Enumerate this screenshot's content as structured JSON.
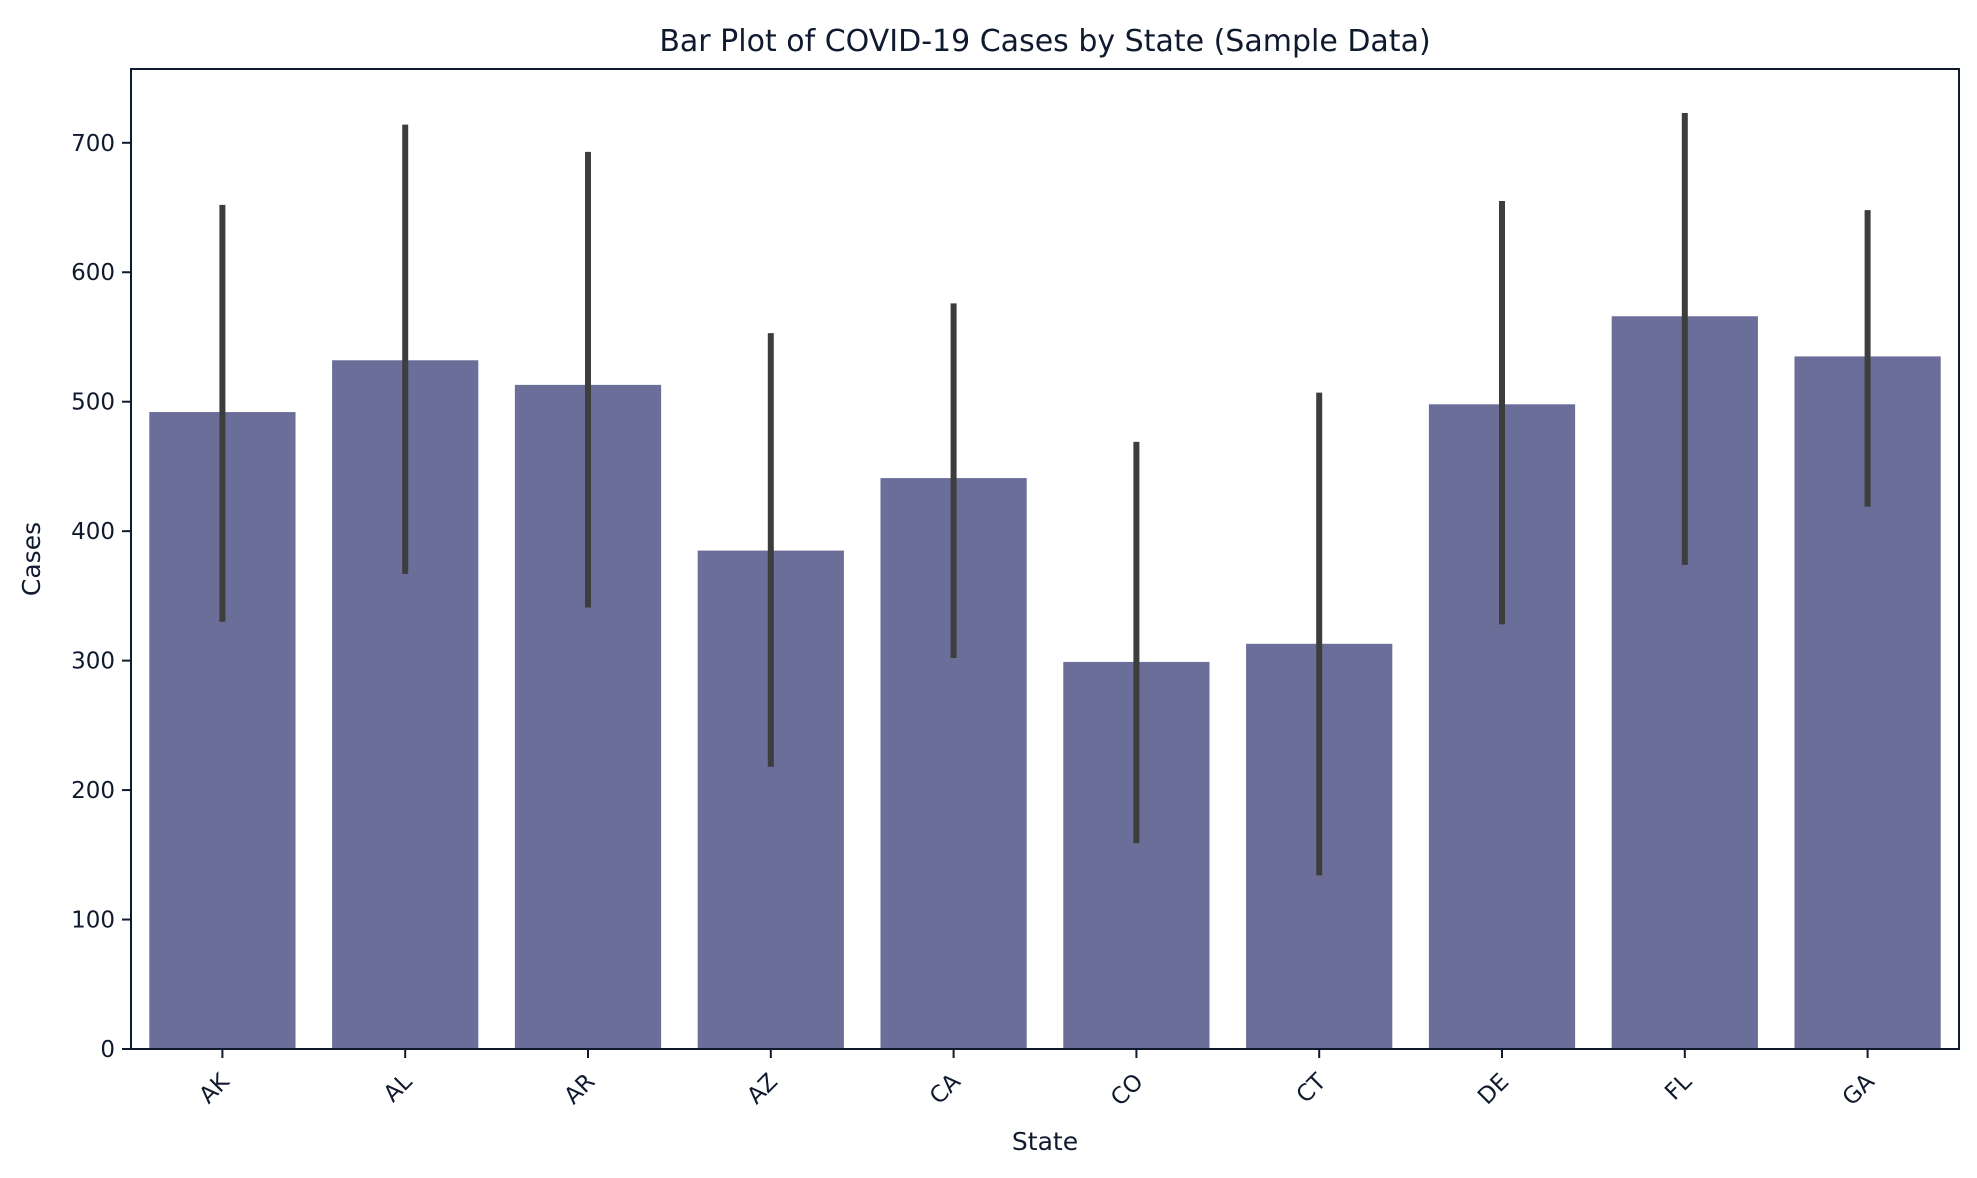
{
  "chart_data": {
    "type": "bar",
    "title": "Bar Plot of COVID-19 Cases by State (Sample Data)",
    "xlabel": "State",
    "ylabel": "Cases",
    "categories": [
      "AK",
      "AL",
      "AR",
      "AZ",
      "CA",
      "CO",
      "CT",
      "DE",
      "FL",
      "GA"
    ],
    "values": [
      492,
      532,
      513,
      385,
      441,
      299,
      313,
      498,
      566,
      535
    ],
    "error_low": [
      330,
      367,
      341,
      218,
      302,
      159,
      134,
      328,
      374,
      419
    ],
    "error_high": [
      652,
      714,
      693,
      553,
      576,
      469,
      507,
      655,
      723,
      648
    ],
    "ylim": [
      0,
      757
    ],
    "yticks": [
      0,
      100,
      200,
      300,
      400,
      500,
      600,
      700
    ],
    "grid": false,
    "x_tick_rotation_deg": -45,
    "bar_color": "#6b6e98",
    "error_bar_color": "#3d3d3d",
    "text_color": "#101a2e"
  }
}
